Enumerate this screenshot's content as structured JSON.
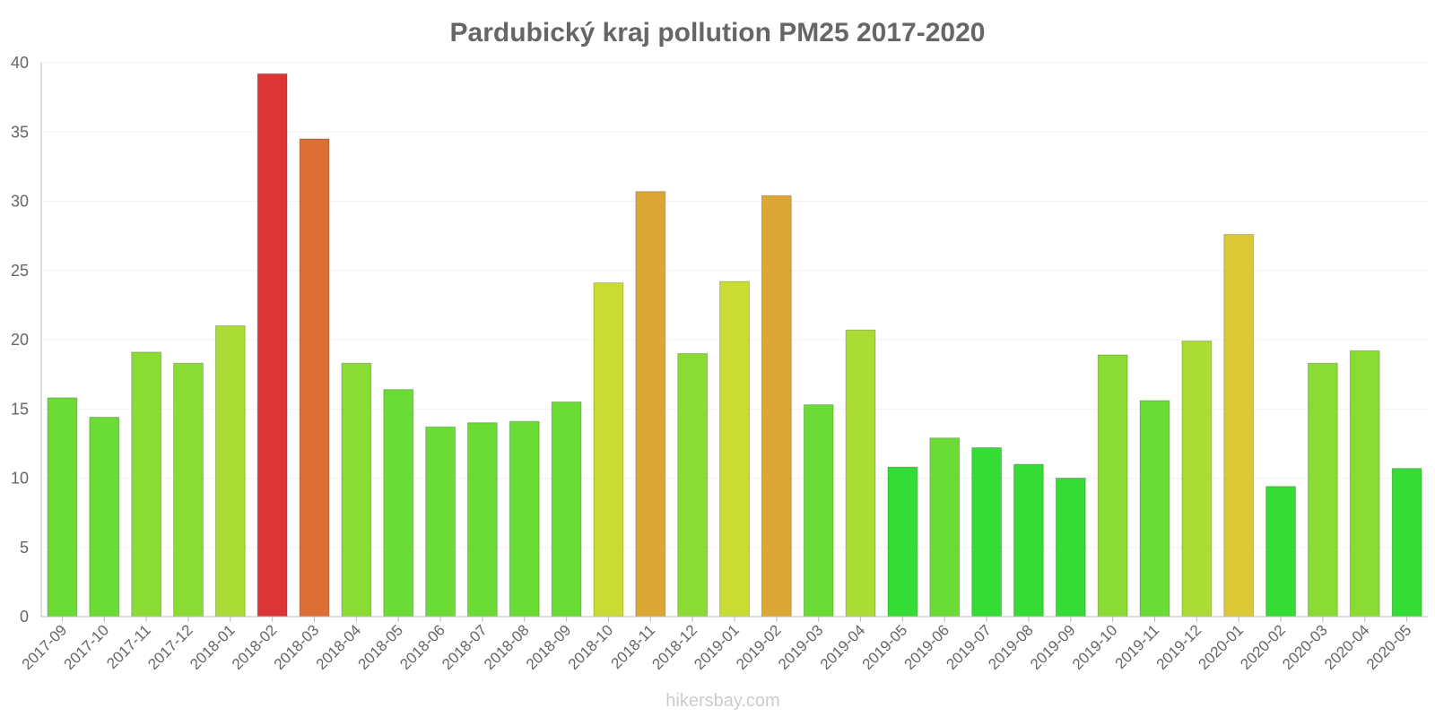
{
  "chart_data": {
    "type": "bar",
    "title": "Pardubický kraj pollution PM25 2017-2020",
    "xlabel": "",
    "ylabel": "",
    "ylim": [
      0,
      40
    ],
    "yticks": [
      "0",
      "5",
      "10",
      "15",
      "20",
      "25",
      "30",
      "35",
      "40"
    ],
    "grid": true,
    "legend": "none",
    "categories": [
      "2017-09",
      "2017-10",
      "2017-11",
      "2017-12",
      "2018-01",
      "2018-02",
      "2018-03",
      "2018-04",
      "2018-05",
      "2018-06",
      "2018-07",
      "2018-08",
      "2018-09",
      "2018-10",
      "2018-11",
      "2018-12",
      "2019-01",
      "2019-02",
      "2019-03",
      "2019-04",
      "2019-05",
      "2019-06",
      "2019-07",
      "2019-08",
      "2019-09",
      "2019-10",
      "2019-11",
      "2019-12",
      "2020-01",
      "2020-02",
      "2020-03",
      "2020-04",
      "2020-05"
    ],
    "values": [
      15.8,
      14.4,
      19.1,
      18.3,
      21,
      39.2,
      34.5,
      18.3,
      16.4,
      13.7,
      14,
      14.1,
      15.5,
      24.1,
      30.7,
      19,
      24.2,
      30.4,
      15.3,
      20.7,
      10.8,
      12.9,
      12.2,
      11,
      10,
      18.9,
      15.6,
      19.9,
      27.6,
      9.4,
      18.3,
      19.2,
      10.7
    ],
    "colors": [
      "#6bdc35",
      "#6bdc35",
      "#8adc35",
      "#8adc35",
      "#aadc35",
      "#dc3535",
      "#dc6f35",
      "#8adc35",
      "#6bdc35",
      "#6bdc35",
      "#6bdc35",
      "#6bdc35",
      "#6bdc35",
      "#c8dc32",
      "#dca735",
      "#8adc35",
      "#c8dc32",
      "#dca735",
      "#6bdc35",
      "#aadc35",
      "#35dc35",
      "#6bdc35",
      "#35dc35",
      "#35dc35",
      "#35dc35",
      "#8adc35",
      "#6bdc35",
      "#aadc35",
      "#dcc835",
      "#35dc35",
      "#8adc35",
      "#8adc35",
      "#35dc35"
    ]
  },
  "watermark": "hikersbay.com"
}
